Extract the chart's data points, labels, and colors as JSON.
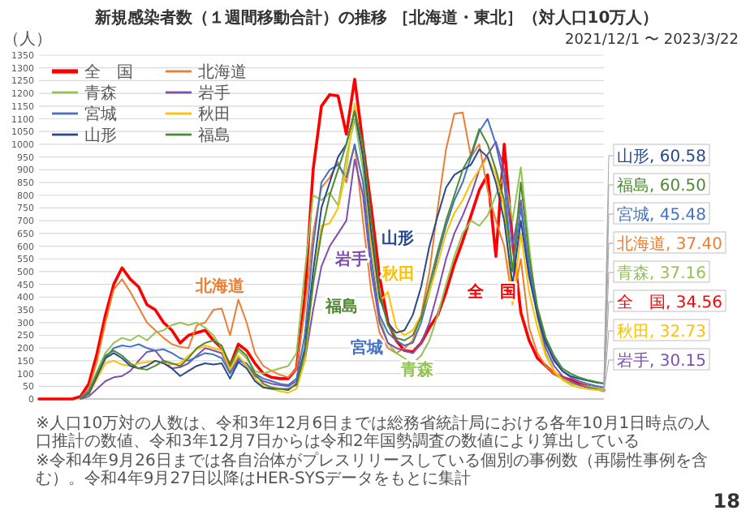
{
  "chart_data": {
    "type": "line",
    "title": "新規感染者数（１週間移動合計）の推移 ［北海道・東北］（対人口10万人）",
    "subtitle": "2021/12/1 〜 2023/3/22",
    "ylabel": "（人）",
    "categories": [
      null,
      null,
      null,
      null,
      null,
      null,
      null,
      null,
      null,
      null,
      null,
      null,
      null,
      null,
      null,
      null,
      null,
      null,
      null,
      null,
      null,
      null,
      null,
      null,
      null,
      null,
      null,
      null,
      null,
      null,
      null,
      null,
      null,
      null,
      null,
      null,
      null,
      null,
      null,
      null,
      null,
      null,
      null,
      null,
      null,
      null,
      null,
      null,
      null,
      null,
      null,
      null,
      null,
      null,
      null,
      null,
      null,
      null,
      null,
      null,
      null,
      null,
      null,
      null,
      null,
      null,
      null,
      null,
      null
    ],
    "ylim": [
      0,
      1350
    ],
    "yticks": [
      0,
      50,
      100,
      150,
      200,
      250,
      300,
      350,
      400,
      450,
      500,
      550,
      600,
      650,
      700,
      750,
      800,
      850,
      900,
      950,
      1000,
      1050,
      1100,
      1150,
      1200,
      1250,
      1300,
      1350
    ],
    "grid": "y",
    "legend": "top left",
    "series": [
      {
        "name": "全　国",
        "color": "#ff0000",
        "values": [
          0,
          0,
          0,
          0,
          0,
          10,
          60,
          180,
          330,
          450,
          515,
          470,
          440,
          370,
          350,
          300,
          270,
          220,
          250,
          260,
          270,
          230,
          200,
          130,
          215,
          190,
          140,
          100,
          85,
          80,
          80,
          120,
          400,
          900,
          1150,
          1195,
          1190,
          1040,
          1255,
          1000,
          750,
          480,
          300,
          230,
          190,
          185,
          220,
          280,
          330,
          420,
          530,
          620,
          720,
          820,
          880,
          560,
          1000,
          620,
          340,
          230,
          160,
          130,
          100,
          85,
          75,
          60,
          50,
          42,
          34.56
        ],
        "value_labels": [
          null,
          null,
          null,
          null,
          null,
          null,
          null,
          null,
          null,
          null,
          null,
          null,
          null,
          null,
          null,
          null,
          null,
          null,
          null,
          null,
          null,
          null,
          null,
          null,
          null,
          null,
          null,
          null,
          null,
          null,
          null,
          null,
          null,
          null,
          null,
          null,
          null,
          null,
          null,
          null,
          null,
          null,
          null,
          null,
          null,
          null,
          null,
          null,
          null,
          null,
          null,
          null,
          null,
          null,
          null,
          null,
          null,
          null,
          null,
          null,
          null,
          null,
          null,
          null,
          null,
          null,
          null,
          null,
          "全　国, 34.56"
        ]
      },
      {
        "name": "北海道",
        "color": "#ed7d31",
        "values": [
          null,
          null,
          null,
          null,
          null,
          5,
          40,
          150,
          300,
          430,
          470,
          420,
          360,
          300,
          270,
          240,
          215,
          205,
          200,
          290,
          300,
          350,
          355,
          250,
          390,
          300,
          180,
          130,
          110,
          95,
          85,
          120,
          350,
          650,
          830,
          870,
          930,
          850,
          1000,
          700,
          420,
          260,
          200,
          180,
          200,
          230,
          330,
          500,
          750,
          980,
          1120,
          1125,
          950,
          1000,
          820,
          700,
          600,
          380,
          550,
          280,
          180,
          130,
          100,
          80,
          65,
          55,
          48,
          42,
          37.4
        ],
        "value_labels": [
          null,
          null,
          null,
          null,
          null,
          null,
          null,
          null,
          null,
          null,
          null,
          null,
          null,
          null,
          null,
          null,
          null,
          null,
          null,
          null,
          null,
          null,
          null,
          null,
          null,
          null,
          null,
          null,
          null,
          null,
          null,
          null,
          null,
          null,
          null,
          null,
          null,
          null,
          null,
          null,
          null,
          null,
          null,
          null,
          null,
          null,
          null,
          null,
          null,
          null,
          null,
          null,
          null,
          null,
          null,
          null,
          null,
          null,
          null,
          null,
          null,
          null,
          null,
          null,
          null,
          null,
          null,
          null,
          "北海道, 37.40"
        ]
      },
      {
        "name": "青森",
        "color": "#92c353",
        "values": [
          null,
          null,
          null,
          null,
          null,
          5,
          30,
          110,
          180,
          220,
          240,
          230,
          250,
          230,
          260,
          270,
          290,
          300,
          290,
          300,
          280,
          250,
          200,
          120,
          190,
          160,
          110,
          100,
          110,
          120,
          130,
          180,
          500,
          800,
          780,
          810,
          760,
          950,
          1100,
          900,
          550,
          320,
          220,
          180,
          160,
          140,
          170,
          230,
          330,
          450,
          560,
          650,
          700,
          680,
          720,
          800,
          880,
          700,
          910,
          600,
          320,
          180,
          110,
          80,
          60,
          55,
          50,
          45,
          37.16
        ],
        "value_labels": [
          null,
          null,
          null,
          null,
          null,
          null,
          null,
          null,
          null,
          null,
          null,
          null,
          null,
          null,
          null,
          null,
          null,
          null,
          null,
          null,
          null,
          null,
          null,
          null,
          null,
          null,
          null,
          null,
          null,
          null,
          null,
          null,
          null,
          null,
          null,
          null,
          null,
          null,
          null,
          null,
          null,
          null,
          null,
          null,
          null,
          null,
          null,
          null,
          null,
          null,
          null,
          null,
          null,
          null,
          null,
          null,
          null,
          null,
          null,
          null,
          null,
          null,
          null,
          null,
          null,
          null,
          null,
          null,
          "青森, 37.16"
        ]
      },
      {
        "name": "岩手",
        "color": "#7f4fb0",
        "values": [
          null,
          null,
          null,
          null,
          null,
          0,
          10,
          40,
          70,
          85,
          90,
          110,
          150,
          185,
          190,
          150,
          120,
          125,
          140,
          170,
          200,
          190,
          180,
          110,
          160,
          130,
          90,
          70,
          60,
          55,
          50,
          70,
          150,
          350,
          520,
          600,
          650,
          700,
          940,
          800,
          500,
          300,
          220,
          200,
          190,
          180,
          220,
          300,
          420,
          550,
          650,
          720,
          800,
          900,
          960,
          1010,
          900,
          600,
          780,
          500,
          330,
          200,
          130,
          90,
          70,
          55,
          45,
          38,
          30.15
        ],
        "value_labels": [
          null,
          null,
          null,
          null,
          null,
          null,
          null,
          null,
          null,
          null,
          null,
          null,
          null,
          null,
          null,
          null,
          null,
          null,
          null,
          null,
          null,
          null,
          null,
          null,
          null,
          null,
          null,
          null,
          null,
          null,
          null,
          null,
          null,
          null,
          null,
          null,
          null,
          null,
          null,
          null,
          null,
          null,
          null,
          null,
          null,
          null,
          null,
          null,
          null,
          null,
          null,
          null,
          null,
          null,
          null,
          null,
          null,
          null,
          null,
          null,
          null,
          null,
          null,
          null,
          null,
          null,
          null,
          null,
          "岩手, 30.15"
        ]
      },
      {
        "name": "宮城",
        "color": "#4472c4",
        "values": [
          null,
          null,
          null,
          null,
          null,
          5,
          30,
          100,
          160,
          200,
          210,
          205,
          215,
          200,
          190,
          195,
          180,
          160,
          150,
          165,
          180,
          175,
          160,
          100,
          150,
          140,
          100,
          80,
          70,
          60,
          55,
          80,
          250,
          600,
          850,
          900,
          920,
          870,
          1000,
          850,
          550,
          330,
          260,
          230,
          210,
          220,
          300,
          420,
          560,
          680,
          780,
          850,
          950,
          1050,
          1100,
          1000,
          850,
          500,
          750,
          520,
          350,
          230,
          160,
          110,
          85,
          70,
          60,
          52,
          45.48
        ],
        "value_labels": [
          null,
          null,
          null,
          null,
          null,
          null,
          null,
          null,
          null,
          null,
          null,
          null,
          null,
          null,
          null,
          null,
          null,
          null,
          null,
          null,
          null,
          null,
          null,
          null,
          null,
          null,
          null,
          null,
          null,
          null,
          null,
          null,
          null,
          null,
          null,
          null,
          null,
          null,
          null,
          null,
          null,
          null,
          null,
          null,
          null,
          null,
          null,
          null,
          null,
          null,
          null,
          null,
          null,
          null,
          null,
          null,
          null,
          null,
          null,
          null,
          null,
          null,
          null,
          null,
          null,
          null,
          null,
          null,
          "宮城, 45.48"
        ]
      },
      {
        "name": "秋田",
        "color": "#ffc000",
        "values": [
          null,
          null,
          null,
          null,
          null,
          3,
          20,
          80,
          140,
          150,
          135,
          130,
          140,
          145,
          150,
          140,
          135,
          140,
          170,
          195,
          210,
          200,
          190,
          115,
          170,
          130,
          80,
          50,
          40,
          30,
          25,
          40,
          150,
          450,
          680,
          690,
          750,
          900,
          1160,
          950,
          600,
          380,
          420,
          280,
          250,
          270,
          330,
          420,
          530,
          650,
          730,
          780,
          850,
          900,
          950,
          880,
          750,
          370,
          650,
          420,
          280,
          170,
          110,
          75,
          55,
          45,
          40,
          36,
          32.73
        ],
        "value_labels": [
          null,
          null,
          null,
          null,
          null,
          null,
          null,
          null,
          null,
          null,
          null,
          null,
          null,
          null,
          null,
          null,
          null,
          null,
          null,
          null,
          null,
          null,
          null,
          null,
          null,
          null,
          null,
          null,
          null,
          null,
          null,
          null,
          null,
          null,
          null,
          null,
          null,
          null,
          null,
          null,
          null,
          null,
          null,
          null,
          null,
          null,
          null,
          null,
          null,
          null,
          null,
          null,
          null,
          null,
          null,
          null,
          null,
          null,
          null,
          null,
          null,
          null,
          null,
          null,
          null,
          null,
          null,
          null,
          "秋田, 32.73"
        ]
      },
      {
        "name": "山形",
        "color": "#264a8c",
        "values": [
          null,
          null,
          null,
          null,
          null,
          3,
          20,
          90,
          160,
          180,
          160,
          130,
          120,
          130,
          150,
          140,
          120,
          90,
          110,
          130,
          140,
          135,
          140,
          80,
          145,
          120,
          70,
          45,
          40,
          40,
          35,
          60,
          200,
          500,
          750,
          850,
          950,
          1000,
          1130,
          950,
          650,
          400,
          300,
          260,
          270,
          330,
          440,
          600,
          720,
          830,
          880,
          900,
          920,
          980,
          950,
          850,
          700,
          450,
          700,
          480,
          330,
          220,
          150,
          110,
          90,
          80,
          72,
          65,
          60.58
        ],
        "value_labels": [
          null,
          null,
          null,
          null,
          null,
          null,
          null,
          null,
          null,
          null,
          null,
          null,
          null,
          null,
          null,
          null,
          null,
          null,
          null,
          null,
          null,
          null,
          null,
          null,
          null,
          null,
          null,
          null,
          null,
          null,
          null,
          null,
          null,
          null,
          null,
          null,
          null,
          null,
          null,
          null,
          null,
          null,
          null,
          null,
          null,
          null,
          null,
          null,
          null,
          null,
          null,
          null,
          null,
          null,
          null,
          null,
          null,
          null,
          null,
          null,
          null,
          null,
          null,
          null,
          null,
          null,
          null,
          null,
          "山形, 60.58"
        ]
      },
      {
        "name": "福島",
        "color": "#4e8a32",
        "values": [
          null,
          null,
          null,
          null,
          null,
          3,
          25,
          100,
          170,
          190,
          170,
          140,
          120,
          115,
          130,
          150,
          140,
          130,
          160,
          200,
          220,
          230,
          210,
          130,
          200,
          170,
          100,
          60,
          45,
          40,
          40,
          55,
          180,
          450,
          650,
          800,
          900,
          1000,
          1130,
          1000,
          700,
          420,
          290,
          240,
          230,
          250,
          320,
          450,
          580,
          700,
          800,
          900,
          960,
          1060,
          1000,
          900,
          780,
          500,
          850,
          560,
          360,
          240,
          170,
          120,
          100,
          85,
          75,
          68,
          60.5
        ],
        "value_labels": [
          null,
          null,
          null,
          null,
          null,
          null,
          null,
          null,
          null,
          null,
          null,
          null,
          null,
          null,
          null,
          null,
          null,
          null,
          null,
          null,
          null,
          null,
          null,
          null,
          null,
          null,
          null,
          null,
          null,
          null,
          null,
          null,
          null,
          null,
          null,
          null,
          null,
          null,
          null,
          null,
          null,
          null,
          null,
          null,
          null,
          null,
          null,
          null,
          null,
          null,
          null,
          null,
          null,
          null,
          null,
          null,
          null,
          null,
          null,
          null,
          null,
          null,
          null,
          null,
          null,
          null,
          null,
          null,
          "福島, 60.50"
        ]
      }
    ],
    "annotations": [
      "※人口10万対の人数は、令和3年12月6日までは総務省統計局における各年10月1日時点の人口推計の数値、令和3年12月7日からは令和2年国勢調査の数値により算出している",
      "※令和4年9月26日までは各自治体がプレスリリースしている個別の事例数（再陽性事例を含む）。令和4年9月27日以降はHER-SYSデータをもとに集計",
      "18"
    ]
  }
}
